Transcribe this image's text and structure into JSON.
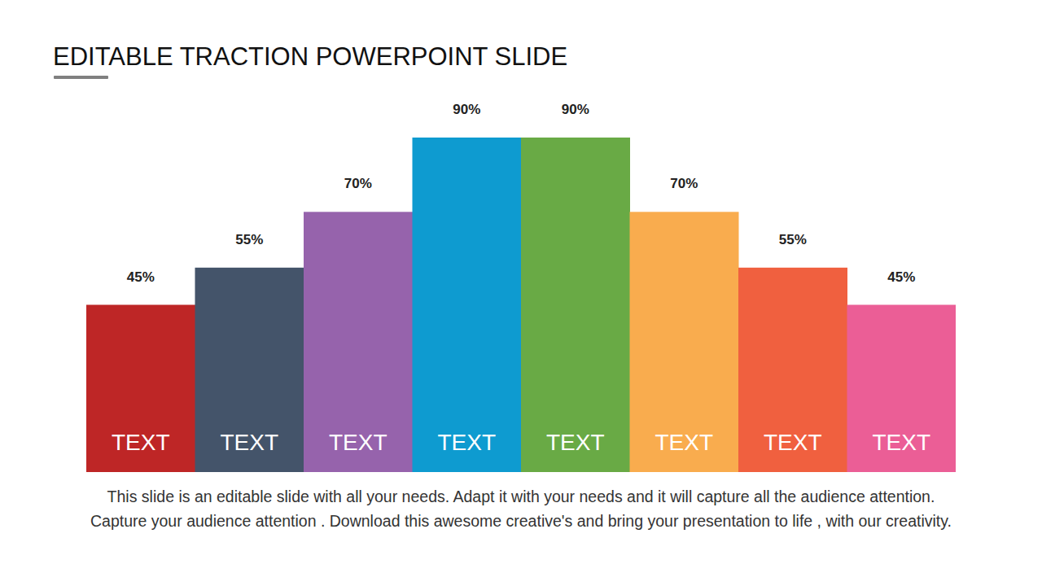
{
  "chart_data": {
    "type": "bar",
    "title": "EDITABLE TRACTION POWERPOINT SLIDE",
    "annotations": [
      "This slide is an editable slide with all your needs. Adapt it with your needs and it will capture all the audience attention. Capture your audience attention . Download this awesome creative's and bring your presentation to life , with our creativity."
    ],
    "categories": [
      "TEXT",
      "TEXT",
      "TEXT",
      "TEXT",
      "TEXT",
      "TEXT",
      "TEXT",
      "TEXT"
    ],
    "values": [
      45,
      55,
      70,
      90,
      90,
      70,
      55,
      45
    ],
    "value_labels": [
      "45%",
      "55%",
      "70%",
      "90%",
      "90%",
      "70%",
      "55%",
      "45%"
    ],
    "colors": [
      "#be2626",
      "#44546a",
      "#9663ac",
      "#0e9bd0",
      "#69aa45",
      "#f9ac4e",
      "#f0603f",
      "#eb5e96"
    ],
    "ylim": [
      0,
      90
    ],
    "data_labels": true,
    "tick_labels": false,
    "grid": false
  }
}
